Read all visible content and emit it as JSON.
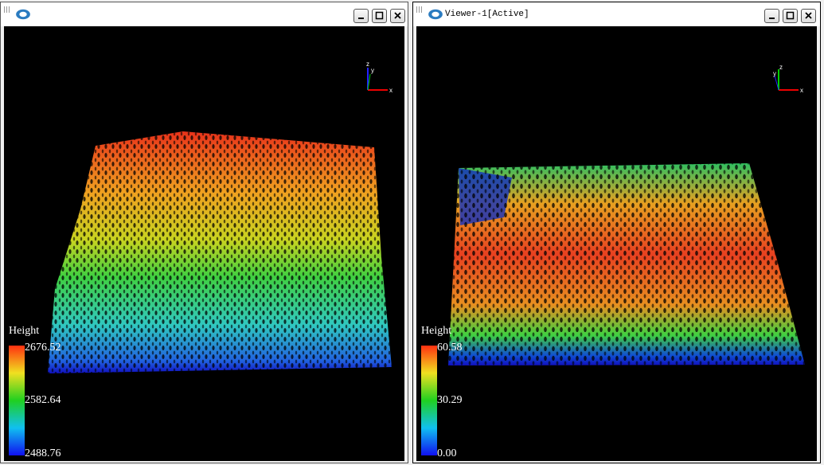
{
  "windows": [
    {
      "legend": {
        "title": "Height",
        "max": "2676.52",
        "mid": "2582.64",
        "min": "2488.76"
      },
      "axes": {
        "x": "x",
        "y": "y",
        "z": "z"
      }
    },
    {
      "title": "Viewer-1[Active]",
      "legend": {
        "title": "Height",
        "max": "60.58",
        "mid": "30.29",
        "min": "0.00"
      },
      "axes": {
        "x": "x",
        "y": "y",
        "z": "z"
      }
    }
  ]
}
